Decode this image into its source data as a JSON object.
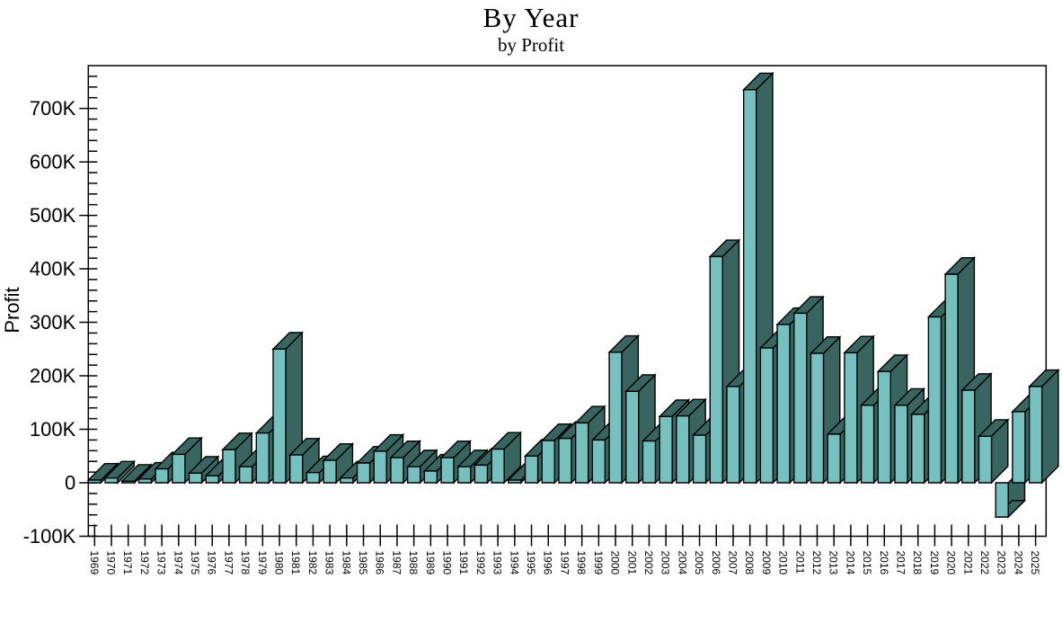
{
  "header": {
    "title": "By Year",
    "subtitle": "by Profit"
  },
  "chart_data": {
    "type": "bar",
    "title": "By Year",
    "subtitle": "by Profit",
    "xlabel": "",
    "ylabel": "Profit",
    "legend_position": "none",
    "grid": false,
    "style_3d": true,
    "categories": [
      "1969",
      "1970",
      "1971",
      "1972",
      "1973",
      "1974",
      "1975",
      "1976",
      "1977",
      "1978",
      "1979",
      "1980",
      "1981",
      "1982",
      "1983",
      "1984",
      "1985",
      "1986",
      "1987",
      "1988",
      "1989",
      "1990",
      "1991",
      "1992",
      "1993",
      "1994",
      "1995",
      "1996",
      "1997",
      "1998",
      "1999",
      "2000",
      "2001",
      "2002",
      "2003",
      "2004",
      "2005",
      "2006",
      "2007",
      "2008",
      "2009",
      "2010",
      "2011",
      "2012",
      "2013",
      "2014",
      "2015",
      "2016",
      "2017",
      "2018",
      "2019",
      "2020",
      "2021",
      "2022",
      "2023",
      "2024",
      "2025"
    ],
    "values": [
      5000,
      9000,
      3000,
      7000,
      26000,
      53000,
      18000,
      13000,
      62000,
      30000,
      93000,
      250000,
      52000,
      19000,
      42000,
      9000,
      37000,
      59000,
      47000,
      30000,
      22000,
      47000,
      30000,
      33000,
      63000,
      5000,
      50000,
      79000,
      83000,
      112000,
      80000,
      244000,
      171000,
      78000,
      124000,
      125000,
      89000,
      423000,
      180000,
      735000,
      252000,
      296000,
      317000,
      242000,
      91000,
      243000,
      145000,
      208000,
      145000,
      128000,
      310000,
      390000,
      173000,
      87000,
      -64000,
      133000,
      180000
    ],
    "ylim": [
      -100000,
      780000
    ],
    "y_tick_values": [
      -100000,
      0,
      100000,
      200000,
      300000,
      400000,
      500000,
      600000,
      700000
    ],
    "y_tick_labels": [
      "-100K",
      "0",
      "100K",
      "200K",
      "300K",
      "400K",
      "500K",
      "600K",
      "700K"
    ],
    "y_minor_tick_step": 20000,
    "colors": {
      "bar_front": "#75C1C0",
      "bar_side": "#386560",
      "bar_outline": "#000000",
      "axis": "#000000",
      "text": "#000000",
      "background": "#FFFFFF"
    }
  }
}
